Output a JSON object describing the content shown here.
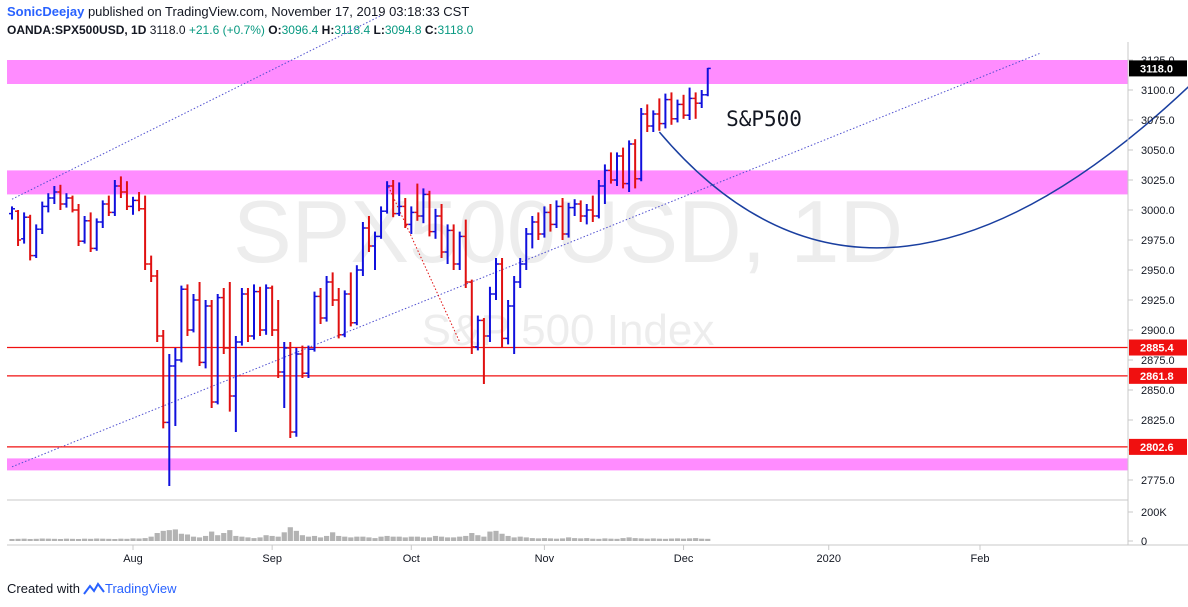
{
  "header": {
    "author": "SonicDeejay",
    "published": "published on TradingView.com, November 17, 2019 03:18:33 CST",
    "symbol": "OANDA:SPX500USD, 1D",
    "last": "3118.0",
    "change": "+21.6 (+0.7%)",
    "o_label": "O:",
    "o": "3096.4",
    "h_label": "H:",
    "h": "3118.4",
    "l_label": "L:",
    "l": "3094.8",
    "c_label": "C:",
    "c": "3118.0"
  },
  "footer": {
    "created": "Created with",
    "brand": "TradingView"
  },
  "colors": {
    "up": "#1010dd",
    "down": "#e01010",
    "zone": "#ff80ff",
    "support": "#f01010",
    "channel": "#5050d0",
    "arrow": "#1a3fa0",
    "volume": "#b3b3b3"
  },
  "chart_data": {
    "type": "ohlc",
    "title": "S&P500",
    "watermark_symbol": "SPX500USD, 1D",
    "watermark_name": "S&P 500 Index",
    "ylim": [
      2760,
      3140
    ],
    "y_ticks": [
      "2775.0",
      "2800.0",
      "2825.0",
      "2850.0",
      "2875.0",
      "2900.0",
      "2925.0",
      "2950.0",
      "2975.0",
      "3000.0",
      "3025.0",
      "3050.0",
      "3075.0",
      "3100.0",
      "3125.0"
    ],
    "x_ticks": [
      "Aug",
      "Sep",
      "Oct",
      "Nov",
      "Dec",
      "2020",
      "Feb"
    ],
    "price_labels": [
      {
        "text": "3118.0",
        "value": 3118.0,
        "style": "last"
      },
      {
        "text": "2885.4",
        "value": 2885.4,
        "style": "level"
      },
      {
        "text": "2861.8",
        "value": 2861.8,
        "style": "level"
      },
      {
        "text": "2802.6",
        "value": 2802.6,
        "style": "level"
      }
    ],
    "support_lines": [
      2885.4,
      2861.8,
      2802.6
    ],
    "zones": [
      [
        3105,
        3125
      ],
      [
        3013,
        3033
      ],
      [
        2783,
        2793
      ]
    ],
    "volume_label": "200K",
    "volume_zero": "0",
    "volume_max": 200,
    "bars": [
      [
        2997,
        3003,
        2992,
        3001
      ],
      [
        2999,
        3000,
        2970,
        2975
      ],
      [
        2976,
        2998,
        2972,
        2994
      ],
      [
        2994,
        2996,
        2958,
        2962
      ],
      [
        2962,
        2988,
        2960,
        2984
      ],
      [
        2984,
        3007,
        2980,
        3003
      ],
      [
        3003,
        3014,
        2998,
        3010
      ],
      [
        3010,
        3020,
        3005,
        3015
      ],
      [
        3015,
        3021,
        3000,
        3005
      ],
      [
        3005,
        3014,
        3002,
        3010
      ],
      [
        3010,
        3012,
        2998,
        3000
      ],
      [
        3000,
        3005,
        2970,
        2974
      ],
      [
        2974,
        2995,
        2972,
        2991
      ],
      [
        2991,
        2998,
        2965,
        2968
      ],
      [
        2968,
        2993,
        2966,
        2990
      ],
      [
        2990,
        3008,
        2985,
        3005
      ],
      [
        3005,
        3012,
        2995,
        2998
      ],
      [
        2998,
        3025,
        2995,
        3020
      ],
      [
        3020,
        3028,
        3010,
        3015
      ],
      [
        3015,
        3024,
        3000,
        3003
      ],
      [
        3003,
        3011,
        2996,
        3008
      ],
      [
        3008,
        3015,
        2999,
        3001
      ],
      [
        3001,
        3012,
        2950,
        2955
      ],
      [
        2955,
        2962,
        2940,
        2945
      ],
      [
        2945,
        2950,
        2890,
        2895
      ],
      [
        2895,
        2900,
        2818,
        2823
      ],
      [
        2823,
        2880,
        2770,
        2870
      ],
      [
        2870,
        2885,
        2820,
        2875
      ],
      [
        2875,
        2937,
        2873,
        2934
      ],
      [
        2934,
        2938,
        2895,
        2900
      ],
      [
        2900,
        2930,
        2898,
        2925
      ],
      [
        2925,
        2940,
        2870,
        2873
      ],
      [
        2873,
        2925,
        2868,
        2920
      ],
      [
        2920,
        2925,
        2835,
        2840
      ],
      [
        2840,
        2930,
        2838,
        2927
      ],
      [
        2927,
        2935,
        2880,
        2885
      ],
      [
        2885,
        2940,
        2832,
        2845
      ],
      [
        2845,
        2895,
        2815,
        2890
      ],
      [
        2890,
        2935,
        2887,
        2930
      ],
      [
        2930,
        2935,
        2890,
        2895
      ],
      [
        2895,
        2938,
        2892,
        2932
      ],
      [
        2932,
        2936,
        2895,
        2900
      ],
      [
        2900,
        2938,
        2896,
        2935
      ],
      [
        2935,
        2937,
        2895,
        2900
      ],
      [
        2900,
        2925,
        2860,
        2865
      ],
      [
        2865,
        2890,
        2835,
        2885
      ],
      [
        2885,
        2890,
        2810,
        2815
      ],
      [
        2815,
        2885,
        2811,
        2880
      ],
      [
        2880,
        2887,
        2860,
        2864
      ],
      [
        2864,
        2887,
        2860,
        2884
      ],
      [
        2884,
        2932,
        2882,
        2928
      ],
      [
        2928,
        2935,
        2905,
        2910
      ],
      [
        2910,
        2945,
        2907,
        2940
      ],
      [
        2940,
        2948,
        2920,
        2925
      ],
      [
        2925,
        2935,
        2893,
        2896
      ],
      [
        2896,
        2933,
        2894,
        2930
      ],
      [
        2930,
        2948,
        2903,
        2906
      ],
      [
        2906,
        2954,
        2904,
        2950
      ],
      [
        2950,
        2990,
        2945,
        2985
      ],
      [
        2985,
        2995,
        2965,
        2970
      ],
      [
        2970,
        2982,
        2950,
        2978
      ],
      [
        2978,
        3003,
        2976,
        2999
      ],
      [
        2999,
        3024,
        2997,
        3020
      ],
      [
        3020,
        3025,
        2994,
        2997
      ],
      [
        2997,
        3023,
        2995,
        3003
      ],
      [
        3003,
        3010,
        2985,
        2988
      ],
      [
        2988,
        3003,
        2980,
        2998
      ],
      [
        2998,
        3022,
        2991,
        2995
      ],
      [
        2995,
        3018,
        2989,
        3013
      ],
      [
        3013,
        3016,
        2978,
        2982
      ],
      [
        2982,
        3001,
        2976,
        2995
      ],
      [
        2995,
        3005,
        2960,
        2965
      ],
      [
        2965,
        2988,
        2955,
        2983
      ],
      [
        2983,
        2988,
        2950,
        2955
      ],
      [
        2955,
        2982,
        2950,
        2978
      ],
      [
        2978,
        2992,
        2935,
        2940
      ],
      [
        2940,
        2942,
        2880,
        2886
      ],
      [
        2886,
        2912,
        2883,
        2908
      ],
      [
        2908,
        2910,
        2855,
        2895
      ],
      [
        2895,
        2936,
        2890,
        2930
      ],
      [
        2930,
        2960,
        2925,
        2955
      ],
      [
        2955,
        2960,
        2885,
        2893
      ],
      [
        2893,
        2925,
        2888,
        2920
      ],
      [
        2920,
        2945,
        2880,
        2940
      ],
      [
        2940,
        2960,
        2935,
        2955
      ],
      [
        2955,
        2985,
        2950,
        2980
      ],
      [
        2980,
        2995,
        2968,
        2990
      ],
      [
        2990,
        2998,
        2975,
        2980
      ],
      [
        2980,
        3003,
        2977,
        2998
      ],
      [
        2998,
        3005,
        2982,
        2988
      ],
      [
        2988,
        3008,
        2985,
        3003
      ],
      [
        3003,
        3010,
        2975,
        2980
      ],
      [
        2980,
        3006,
        2977,
        3002
      ],
      [
        3002,
        3009,
        2995,
        3005
      ],
      [
        3005,
        3008,
        2990,
        2995
      ],
      [
        2995,
        3005,
        2988,
        3000
      ],
      [
        3000,
        3012,
        2990,
        2995
      ],
      [
        2995,
        3025,
        2993,
        3020
      ],
      [
        3020,
        3038,
        3005,
        3033
      ],
      [
        3033,
        3048,
        3022,
        3025
      ],
      [
        3025,
        3048,
        3020,
        3045
      ],
      [
        3045,
        3052,
        3018,
        3022
      ],
      [
        3022,
        3058,
        3015,
        3055
      ],
      [
        3055,
        3059,
        3018,
        3026
      ],
      [
        3026,
        3085,
        3024,
        3080
      ],
      [
        3080,
        3088,
        3065,
        3070
      ],
      [
        3070,
        3083,
        3065,
        3080
      ],
      [
        3080,
        3093,
        3066,
        3072
      ],
      [
        3072,
        3097,
        3068,
        3092
      ],
      [
        3092,
        3098,
        3071,
        3076
      ],
      [
        3076,
        3092,
        3073,
        3088
      ],
      [
        3088,
        3096,
        3076,
        3079
      ],
      [
        3079,
        3102,
        3075,
        3093
      ],
      [
        3093,
        3098,
        3076,
        3089
      ],
      [
        3089,
        3100,
        3085,
        3096
      ],
      [
        3096,
        3118.4,
        3094.8,
        3118
      ]
    ],
    "volume": [
      14,
      15,
      16,
      14,
      15,
      17,
      16,
      15,
      14,
      16,
      15,
      14,
      16,
      15,
      17,
      16,
      15,
      14,
      16,
      15,
      18,
      17,
      20,
      30,
      55,
      70,
      75,
      80,
      50,
      45,
      30,
      25,
      35,
      65,
      40,
      55,
      75,
      35,
      30,
      25,
      20,
      25,
      40,
      35,
      30,
      60,
      95,
      70,
      40,
      30,
      35,
      25,
      35,
      60,
      35,
      30,
      25,
      30,
      30,
      25,
      20,
      30,
      35,
      30,
      30,
      25,
      30,
      30,
      25,
      25,
      35,
      30,
      25,
      25,
      30,
      35,
      55,
      40,
      30,
      65,
      70,
      50,
      35,
      25,
      30,
      25,
      20,
      18,
      20,
      18,
      16,
      18,
      25,
      20,
      18,
      20,
      16,
      15,
      18,
      16,
      15,
      20,
      25,
      20,
      18,
      16,
      18,
      16,
      15,
      17,
      18,
      16,
      18,
      20,
      16,
      15
    ],
    "channel_upper": {
      "from": {
        "bar": 0,
        "value": 3009
      },
      "to": {
        "bar": 61,
        "value": 3162
      }
    },
    "channel_lower": {
      "from": {
        "bar": 0,
        "value": 2786
      },
      "to": {
        "bar": 72,
        "value": 2932
      },
      "extend_to_bar": 170
    },
    "projection": {
      "from": {
        "bar": 107,
        "value": 3065
      },
      "via": {
        "bar": 148,
        "value": 2970
      },
      "to": {
        "bar": 198,
        "value": 3120
      }
    }
  }
}
